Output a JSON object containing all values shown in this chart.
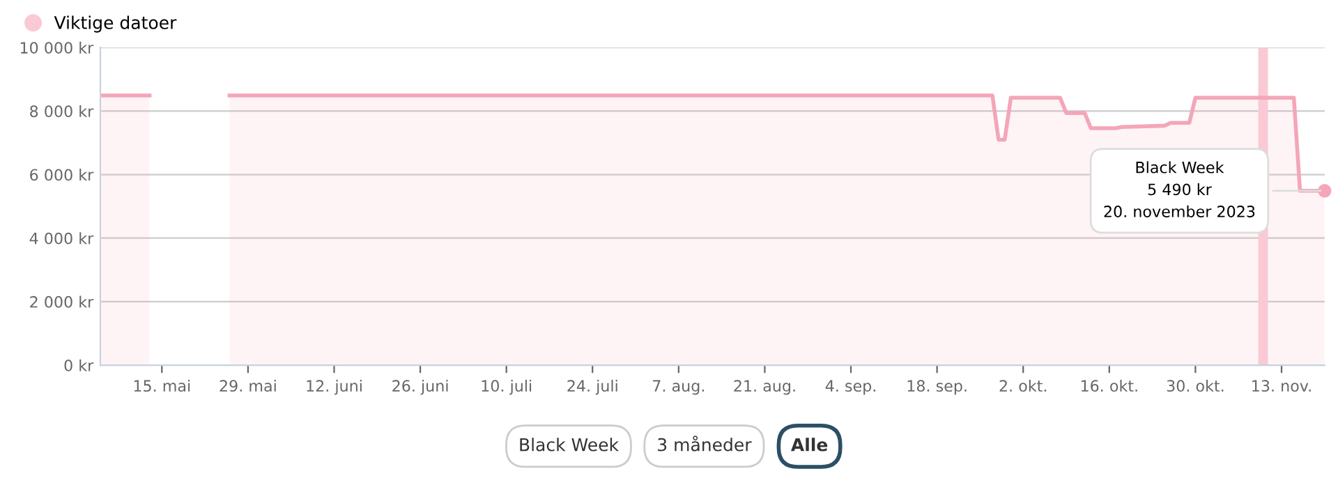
{
  "chart_data": {
    "type": "area",
    "x": [
      "2023-05-05",
      "2023-05-13",
      "2023-05-20",
      "2023-05-26",
      "2023-09-27",
      "2023-09-28",
      "2023-09-29",
      "2023-09-30",
      "2023-10-08",
      "2023-10-09",
      "2023-10-12",
      "2023-10-13",
      "2023-10-17",
      "2023-10-18",
      "2023-10-25",
      "2023-10-26",
      "2023-10-29",
      "2023-10-30",
      "2023-11-15",
      "2023-11-16",
      "2023-11-20"
    ],
    "series": [
      {
        "color": "#f4a6b8",
        "values": [
          8490,
          8490,
          null,
          8490,
          8490,
          7100,
          7100,
          8420,
          8420,
          7940,
          7940,
          7460,
          7460,
          7500,
          7540,
          7630,
          7630,
          8420,
          8420,
          5490,
          5490
        ]
      }
    ],
    "xlim": [
      "2023-05-05",
      "2023-11-20"
    ],
    "xticks": [
      {
        "value": "2023-05-15",
        "label": "15. mai"
      },
      {
        "value": "2023-05-29",
        "label": "29. mai"
      },
      {
        "value": "2023-06-12",
        "label": "12. juni"
      },
      {
        "value": "2023-06-26",
        "label": "26. juni"
      },
      {
        "value": "2023-07-10",
        "label": "10. juli"
      },
      {
        "value": "2023-07-24",
        "label": "24. juli"
      },
      {
        "value": "2023-08-07",
        "label": "7. aug."
      },
      {
        "value": "2023-08-21",
        "label": "21. aug."
      },
      {
        "value": "2023-09-04",
        "label": "4. sep."
      },
      {
        "value": "2023-09-18",
        "label": "18. sep."
      },
      {
        "value": "2023-10-02",
        "label": "2. okt."
      },
      {
        "value": "2023-10-16",
        "label": "16. okt."
      },
      {
        "value": "2023-10-30",
        "label": "30. okt."
      },
      {
        "value": "2023-11-13",
        "label": "13. nov."
      }
    ],
    "ylim": [
      0,
      10000
    ],
    "yticks": [
      {
        "value": 0,
        "label": "0 kr"
      },
      {
        "value": 2000,
        "label": "2 000 kr"
      },
      {
        "value": 4000,
        "label": "4 000 kr"
      },
      {
        "value": 6000,
        "label": "6 000 kr"
      },
      {
        "value": 8000,
        "label": "8 000 kr"
      },
      {
        "value": 10000,
        "label": "10 000 kr"
      }
    ],
    "grid": "y",
    "legend": "top left",
    "ref_lines": [
      {
        "axis": "x",
        "value": "2023-11-10",
        "label": "Viktige datoer",
        "color": "#f9c9d4"
      }
    ],
    "annotations": [
      {
        "text": "Black Week\n5 490 kr\n20. november 2023",
        "x": "2023-11-20",
        "y": 5490
      },
      "Black Week",
      "3 måneder",
      "Alle"
    ]
  }
}
